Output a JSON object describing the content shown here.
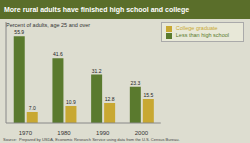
{
  "chart_data": {
    "type": "bar",
    "title": "More rural adults have finished high school and college",
    "subtitle": "Percent of adults, age 25 and over",
    "annotations": [
      "Source:  Prepared by USDA, Economic Research Service using data from the U.S. Census Bureau."
    ],
    "categories": [
      "1970",
      "1980",
      "1990",
      "2000"
    ],
    "series": [
      {
        "name": "Less than high school",
        "color": "#5a7a2e",
        "values": [
          55.9,
          41.6,
          31.2,
          23.3
        ]
      },
      {
        "name": "College graduate",
        "color": "#c8a832",
        "values": [
          7.0,
          10.9,
          12.8,
          15.5
        ],
        "value_labels": [
          "7.0",
          "10.9",
          "12.8",
          "15.5"
        ]
      }
    ],
    "ylim": [
      0,
      65
    ],
    "grid": false,
    "legend": "upper right",
    "data_labels": true,
    "tick_labels": "x"
  }
}
